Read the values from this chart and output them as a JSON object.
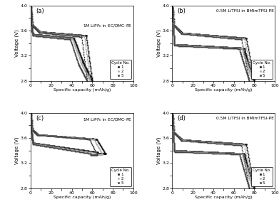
{
  "title_a": "1M LiPF$_6$ in EC/DMC-PE",
  "title_b": "0.5M LiTFSI in BMImTFSI-PE",
  "title_c": "1M LiPF$_6$ in EC/DMC-PE",
  "title_d": "0.5M LiTFSI in BMImTFSI-PE",
  "xlabel": "Specific capacity (mAh/g)",
  "ylabel": "Voltage (V)",
  "xlim": [
    0,
    100
  ],
  "ylim": [
    2.8,
    4.0
  ],
  "cycle_colors": [
    "#111111",
    "#aaaaaa",
    "#444444"
  ],
  "cycle_markers": [
    "s",
    "o",
    "s"
  ],
  "ms_vals": [
    1.2,
    1.2,
    1.0
  ]
}
